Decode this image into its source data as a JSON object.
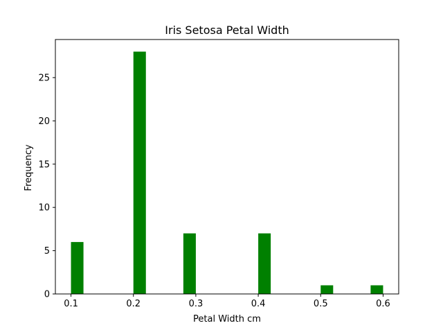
{
  "chart_data": {
    "type": "bar",
    "title": "Iris Setosa Petal Width",
    "xlabel": "Petal Width cm",
    "ylabel": "Frequency",
    "bar_color": "#008000",
    "xlim": [
      0.075,
      0.625
    ],
    "ylim": [
      0,
      29.4
    ],
    "x_ticks": [
      0.1,
      0.2,
      0.3,
      0.4,
      0.5,
      0.6
    ],
    "x_tick_labels": [
      "0.1",
      "0.2",
      "0.3",
      "0.4",
      "0.5",
      "0.6"
    ],
    "y_ticks": [
      0,
      5,
      10,
      15,
      20,
      25
    ],
    "y_tick_labels": [
      "0",
      "5",
      "10",
      "15",
      "20",
      "25"
    ],
    "bin_width": 0.02,
    "bins": [
      {
        "start": 0.1,
        "value": 6
      },
      {
        "start": 0.2,
        "value": 28
      },
      {
        "start": 0.28,
        "value": 7
      },
      {
        "start": 0.4,
        "value": 7
      },
      {
        "start": 0.5,
        "value": 1
      },
      {
        "start": 0.58,
        "value": 1
      }
    ],
    "grid": false,
    "legend": "none"
  }
}
